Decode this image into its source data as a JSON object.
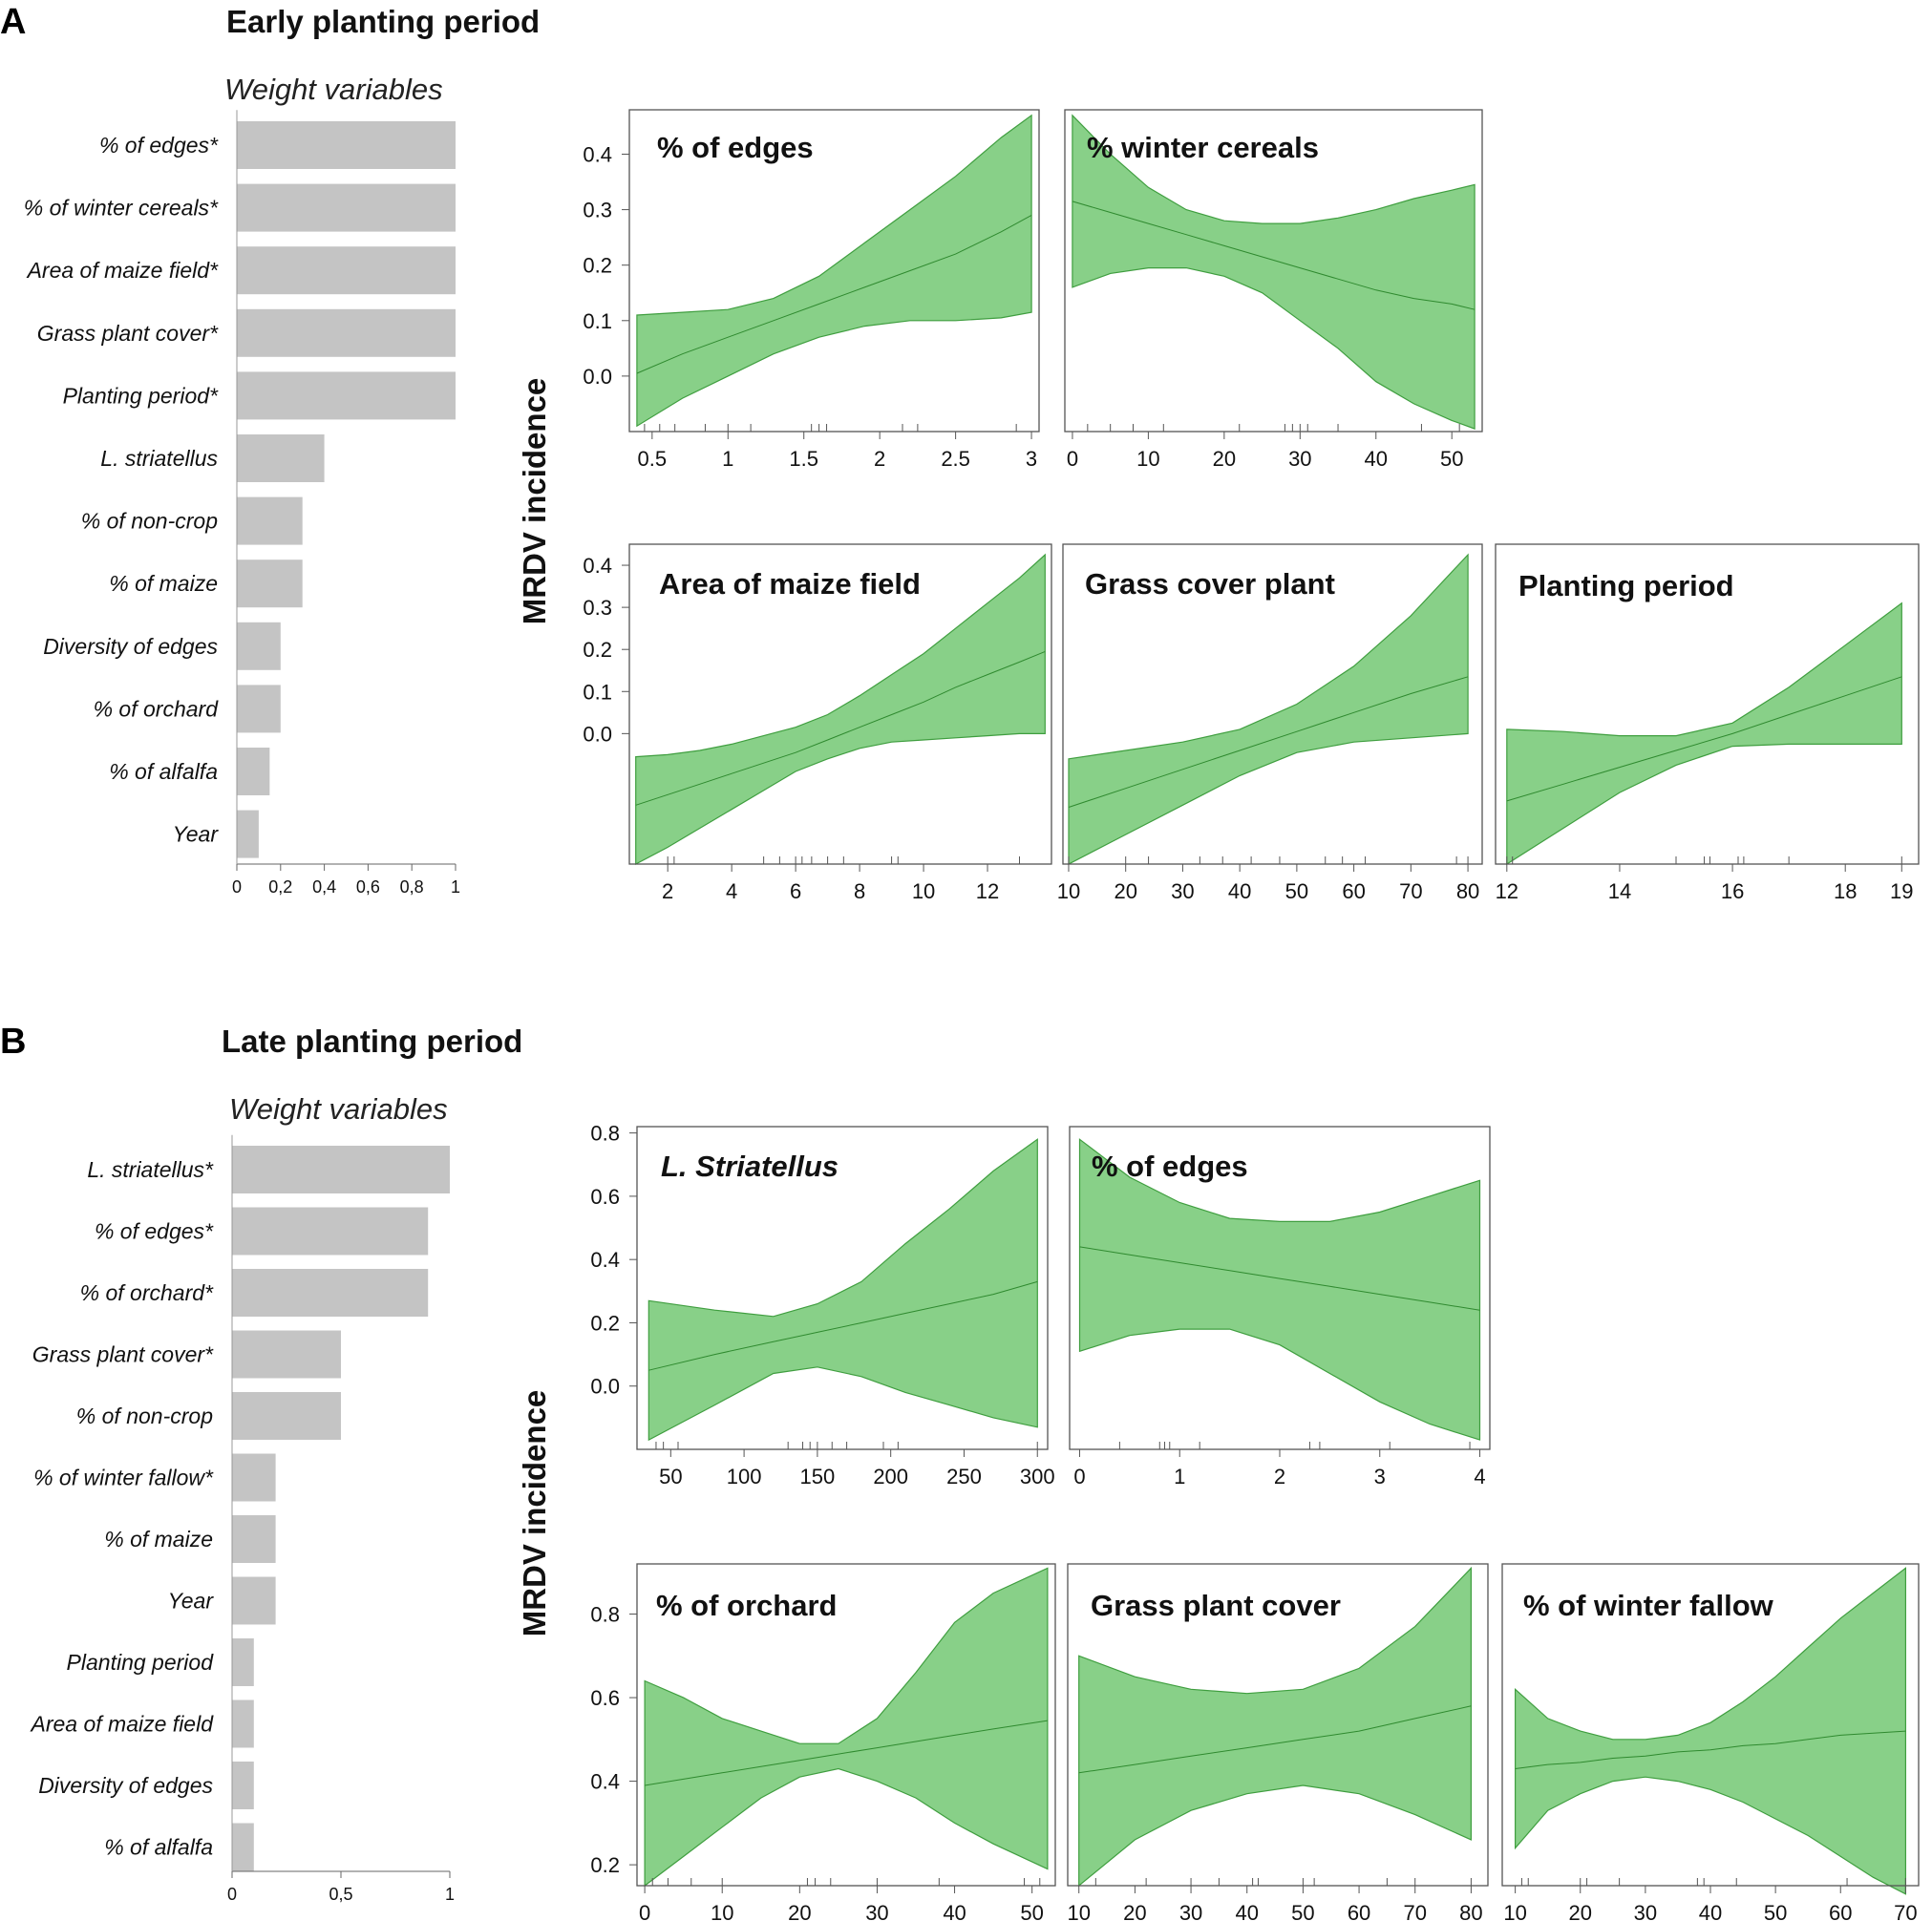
{
  "panels": [
    {
      "letter": "A",
      "title": "Early planting period",
      "weight_title": "Weight variables",
      "ylabel": "MRDV incidence",
      "weights": {
        "labels": [
          "% of edges*",
          "% of winter cereals*",
          "Area of maize field*",
          "Grass plant cover*",
          "Planting period*",
          "L. striatellus",
          "% of non-crop",
          "% of maize",
          "Diversity of edges",
          "% of orchard",
          "% of alfalfa",
          "Year"
        ],
        "values": [
          1.0,
          1.0,
          1.0,
          1.0,
          1.0,
          0.4,
          0.3,
          0.3,
          0.2,
          0.2,
          0.15,
          0.1
        ],
        "ticks": [
          0,
          0.2,
          0.4,
          0.6,
          0.8,
          1
        ],
        "tick_labels": [
          "0",
          "0,2",
          "0,4",
          "0,6",
          "0,8",
          "1"
        ],
        "max": 1
      },
      "row_yticks": [
        {
          "values": [
            0.0,
            0.1,
            0.2,
            0.3,
            0.4
          ],
          "labels": [
            "0.0",
            "0.1",
            "0.2",
            "0.3",
            "0.4"
          ]
        },
        {
          "values": [
            0.0,
            0.1,
            0.2,
            0.3,
            0.4
          ],
          "labels": [
            "0.0",
            "0.1",
            "0.2",
            "0.3",
            "0.4"
          ]
        }
      ]
    },
    {
      "letter": "B",
      "title": "Late planting period",
      "weight_title": "Weight variables",
      "ylabel": "MRDV incidence",
      "weights": {
        "labels": [
          "L. striatellus*",
          "% of edges*",
          "% of orchard*",
          "Grass plant cover*",
          "% of non-crop",
          "% of winter fallow*",
          "% of maize",
          "Year",
          "Planting period",
          "Area of maize field",
          "Diversity of edges",
          "% of alfalfa"
        ],
        "values": [
          1.0,
          0.9,
          0.9,
          0.5,
          0.5,
          0.2,
          0.2,
          0.2,
          0.1,
          0.1,
          0.1,
          0.1
        ],
        "ticks": [
          0,
          0.5,
          1
        ],
        "tick_labels": [
          "0",
          "0,5",
          "1"
        ],
        "max": 1
      },
      "row_yticks": [
        {
          "values": [
            0.0,
            0.2,
            0.4,
            0.6,
            0.8
          ],
          "labels": [
            "0.0",
            "0.2",
            "0.4",
            "0.6",
            "0.8"
          ]
        },
        {
          "values": [
            0.2,
            0.4,
            0.6,
            0.8
          ],
          "labels": [
            "0.2",
            "0.4",
            "0.6",
            "0.8"
          ]
        }
      ]
    }
  ],
  "chart_data": [
    {
      "type": "bar",
      "title": "Early planting period — Weight variables",
      "categories": [
        "% of edges*",
        "% of winter cereals*",
        "Area of maize field*",
        "Grass plant cover*",
        "Planting period*",
        "L. striatellus",
        "% of non-crop",
        "% of maize",
        "Diversity of edges",
        "% of orchard",
        "% of alfalfa",
        "Year"
      ],
      "values": [
        1.0,
        1.0,
        1.0,
        1.0,
        1.0,
        0.4,
        0.3,
        0.3,
        0.2,
        0.2,
        0.15,
        0.1
      ],
      "xlim": [
        0,
        1
      ]
    },
    {
      "type": "area",
      "panel": "A",
      "title": "% of edges",
      "ylabel": "MRDV incidence",
      "xlim": [
        0.35,
        3.05
      ],
      "ylim": [
        -0.1,
        0.48
      ],
      "xticks": [
        0.5,
        1,
        1.5,
        2,
        2.5,
        3
      ],
      "xtick_labels": [
        "0.5",
        "1",
        "1.5",
        "2",
        "2.5",
        "3"
      ],
      "x": [
        0.4,
        0.7,
        1.0,
        1.3,
        1.6,
        1.9,
        2.2,
        2.5,
        2.8,
        3.0
      ],
      "fit": [
        0.005,
        0.04,
        0.07,
        0.1,
        0.13,
        0.16,
        0.19,
        0.22,
        0.26,
        0.29
      ],
      "lower": [
        -0.09,
        -0.04,
        0.0,
        0.04,
        0.07,
        0.09,
        0.1,
        0.1,
        0.105,
        0.115
      ],
      "upper": [
        0.11,
        0.115,
        0.12,
        0.14,
        0.18,
        0.24,
        0.3,
        0.36,
        0.43,
        0.47
      ],
      "rug": [
        0.45,
        0.55,
        0.65,
        0.85,
        1.0,
        1.15,
        1.55,
        1.6,
        1.65,
        2.15,
        2.25,
        2.9
      ]
    },
    {
      "type": "area",
      "panel": "A",
      "title": "% winter cereals",
      "xlim": [
        -1,
        54
      ],
      "ylim": [
        -0.1,
        0.48
      ],
      "xticks": [
        0,
        10,
        20,
        30,
        40,
        50
      ],
      "xtick_labels": [
        "0",
        "10",
        "20",
        "30",
        "40",
        "50"
      ],
      "x": [
        0,
        5,
        10,
        15,
        20,
        25,
        30,
        35,
        40,
        45,
        50,
        53
      ],
      "fit": [
        0.315,
        0.295,
        0.275,
        0.255,
        0.235,
        0.215,
        0.195,
        0.175,
        0.155,
        0.14,
        0.13,
        0.12
      ],
      "lower": [
        0.16,
        0.185,
        0.195,
        0.195,
        0.18,
        0.15,
        0.1,
        0.05,
        -0.01,
        -0.05,
        -0.08,
        -0.095
      ],
      "upper": [
        0.47,
        0.4,
        0.34,
        0.3,
        0.28,
        0.275,
        0.275,
        0.285,
        0.3,
        0.32,
        0.335,
        0.345
      ],
      "rug": [
        2,
        5,
        8,
        12,
        22,
        28,
        29,
        30,
        31,
        35,
        46,
        51
      ]
    },
    {
      "type": "area",
      "panel": "A",
      "title": "Area of maize field",
      "xlim": [
        0.8,
        14.0
      ],
      "ylim": [
        -0.31,
        0.45
      ],
      "xticks": [
        2,
        4,
        6,
        8,
        10,
        12
      ],
      "xtick_labels": [
        "2",
        "4",
        "6",
        "8",
        "10",
        "12"
      ],
      "x": [
        1.0,
        2.0,
        3.0,
        4.0,
        5.0,
        6.0,
        7.0,
        8.0,
        9.0,
        10.0,
        11.0,
        12.0,
        13.0,
        13.8
      ],
      "fit": [
        -0.17,
        -0.145,
        -0.12,
        -0.095,
        -0.07,
        -0.045,
        -0.015,
        0.015,
        0.045,
        0.075,
        0.11,
        0.14,
        0.17,
        0.195
      ],
      "lower": [
        -0.31,
        -0.27,
        -0.225,
        -0.18,
        -0.135,
        -0.09,
        -0.06,
        -0.035,
        -0.02,
        -0.015,
        -0.01,
        -0.005,
        0.0,
        0.0
      ],
      "upper": [
        -0.055,
        -0.05,
        -0.04,
        -0.025,
        -0.005,
        0.015,
        0.045,
        0.09,
        0.14,
        0.19,
        0.25,
        0.31,
        0.37,
        0.425
      ],
      "rug": [
        2.0,
        2.2,
        5.0,
        5.5,
        6.0,
        6.2,
        6.5,
        7.0,
        7.5,
        9.0,
        9.2,
        13.0
      ]
    },
    {
      "type": "area",
      "panel": "A",
      "title": "Grass cover plant",
      "xlim": [
        9,
        82.5
      ],
      "ylim": [
        -0.31,
        0.45
      ],
      "xticks": [
        10,
        20,
        30,
        40,
        50,
        60,
        70,
        80
      ],
      "xtick_labels": [
        "10",
        "20",
        "30",
        "40",
        "50",
        "60",
        "70",
        "80"
      ],
      "x": [
        10,
        20,
        30,
        40,
        50,
        60,
        70,
        80
      ],
      "fit": [
        -0.175,
        -0.13,
        -0.085,
        -0.04,
        0.005,
        0.05,
        0.095,
        0.135
      ],
      "lower": [
        -0.31,
        -0.24,
        -0.17,
        -0.1,
        -0.045,
        -0.02,
        -0.01,
        0.0
      ],
      "upper": [
        -0.06,
        -0.04,
        -0.02,
        0.01,
        0.07,
        0.16,
        0.28,
        0.425
      ],
      "rug": [
        10,
        20,
        24,
        33,
        37,
        42,
        47,
        55,
        58,
        62,
        78,
        80
      ]
    },
    {
      "type": "area",
      "panel": "A",
      "title": "Planting period",
      "xlim": [
        11.8,
        19.3
      ],
      "ylim": [
        -0.31,
        0.45
      ],
      "xticks": [
        12,
        14,
        16,
        18,
        19
      ],
      "xtick_labels": [
        "12",
        "14",
        "16",
        "18",
        "19"
      ],
      "x": [
        12,
        13,
        14,
        15,
        16,
        17,
        18,
        19
      ],
      "fit": [
        -0.16,
        -0.12,
        -0.08,
        -0.04,
        0.0,
        0.045,
        0.09,
        0.135
      ],
      "lower": [
        -0.31,
        -0.225,
        -0.14,
        -0.075,
        -0.03,
        -0.025,
        -0.025,
        -0.025
      ],
      "upper": [
        0.01,
        0.005,
        -0.005,
        -0.005,
        0.025,
        0.11,
        0.21,
        0.31
      ],
      "rug": [
        12,
        12.1,
        15,
        15.5,
        15.6,
        16.1,
        16.2,
        17,
        19
      ]
    },
    {
      "type": "bar",
      "title": "Late planting period — Weight variables",
      "categories": [
        "L. striatellus*",
        "% of edges*",
        "% of orchard*",
        "Grass plant cover*",
        "% of non-crop",
        "% of winter fallow*",
        "% of maize",
        "Year",
        "Planting period",
        "Area of maize field",
        "Diversity of edges",
        "% of alfalfa"
      ],
      "values": [
        1.0,
        0.9,
        0.9,
        0.5,
        0.5,
        0.2,
        0.2,
        0.2,
        0.1,
        0.1,
        0.1,
        0.1
      ],
      "xlim": [
        0,
        1
      ]
    },
    {
      "type": "area",
      "panel": "B",
      "title": "L. Striatellus",
      "title_italic": true,
      "ylabel": "MRDV incidence",
      "xlim": [
        27,
        307
      ],
      "ylim": [
        -0.2,
        0.82
      ],
      "xticks": [
        50,
        100,
        150,
        200,
        250,
        300
      ],
      "xtick_labels": [
        "50",
        "100",
        "150",
        "200",
        "250",
        "300"
      ],
      "x": [
        35,
        80,
        120,
        150,
        180,
        210,
        240,
        270,
        300
      ],
      "fit": [
        0.05,
        0.1,
        0.14,
        0.17,
        0.2,
        0.23,
        0.26,
        0.29,
        0.33
      ],
      "lower": [
        -0.17,
        -0.06,
        0.04,
        0.06,
        0.03,
        -0.02,
        -0.06,
        -0.1,
        -0.13
      ],
      "upper": [
        0.27,
        0.24,
        0.22,
        0.26,
        0.33,
        0.45,
        0.56,
        0.68,
        0.78
      ],
      "rug": [
        40,
        45,
        55,
        130,
        140,
        145,
        150,
        160,
        170,
        195,
        205,
        300
      ]
    },
    {
      "type": "area",
      "panel": "B",
      "title": "% of edges",
      "xlim": [
        -0.1,
        4.1
      ],
      "ylim": [
        -0.2,
        0.82
      ],
      "xticks": [
        0,
        1,
        2,
        3,
        4
      ],
      "xtick_labels": [
        "0",
        "1",
        "2",
        "3",
        "4"
      ],
      "x": [
        0,
        0.5,
        1.0,
        1.5,
        2.0,
        2.5,
        3.0,
        3.5,
        4.0
      ],
      "fit": [
        0.44,
        0.415,
        0.39,
        0.365,
        0.34,
        0.315,
        0.29,
        0.265,
        0.24
      ],
      "lower": [
        0.11,
        0.16,
        0.18,
        0.18,
        0.13,
        0.04,
        -0.05,
        -0.12,
        -0.17
      ],
      "upper": [
        0.78,
        0.66,
        0.58,
        0.53,
        0.52,
        0.52,
        0.55,
        0.6,
        0.65
      ],
      "rug": [
        0.4,
        0.8,
        0.85,
        0.9,
        1.2,
        2.3,
        2.4,
        3.1,
        3.9
      ]
    },
    {
      "type": "area",
      "panel": "B",
      "title": "% of orchard",
      "xlim": [
        -1,
        53
      ],
      "ylim": [
        0.15,
        0.92
      ],
      "xticks": [
        0,
        10,
        20,
        30,
        40,
        50
      ],
      "xtick_labels": [
        "0",
        "10",
        "20",
        "30",
        "40",
        "50"
      ],
      "x": [
        0,
        5,
        10,
        15,
        20,
        25,
        30,
        35,
        40,
        45,
        52
      ],
      "fit": [
        0.39,
        0.405,
        0.42,
        0.435,
        0.45,
        0.465,
        0.48,
        0.495,
        0.51,
        0.525,
        0.545
      ],
      "lower": [
        0.15,
        0.22,
        0.29,
        0.36,
        0.41,
        0.43,
        0.4,
        0.36,
        0.3,
        0.25,
        0.19
      ],
      "upper": [
        0.64,
        0.6,
        0.55,
        0.52,
        0.49,
        0.49,
        0.55,
        0.66,
        0.78,
        0.85,
        0.91
      ],
      "rug": [
        1,
        3,
        6,
        10,
        21,
        22,
        24,
        30,
        38,
        49,
        51
      ]
    },
    {
      "type": "area",
      "panel": "B",
      "title": "Grass plant cover",
      "xlim": [
        8,
        83
      ],
      "ylim": [
        0.15,
        0.92
      ],
      "xticks": [
        10,
        20,
        30,
        40,
        50,
        60,
        70,
        80
      ],
      "xtick_labels": [
        "10",
        "20",
        "30",
        "40",
        "50",
        "60",
        "70",
        "80"
      ],
      "x": [
        10,
        20,
        30,
        40,
        50,
        60,
        70,
        80
      ],
      "fit": [
        0.42,
        0.44,
        0.46,
        0.48,
        0.5,
        0.52,
        0.55,
        0.58
      ],
      "lower": [
        0.15,
        0.26,
        0.33,
        0.37,
        0.39,
        0.37,
        0.32,
        0.26
      ],
      "upper": [
        0.7,
        0.65,
        0.62,
        0.61,
        0.62,
        0.67,
        0.77,
        0.91
      ],
      "rug": [
        13,
        22,
        30,
        35,
        41,
        42,
        50,
        52,
        65,
        70,
        80
      ]
    },
    {
      "type": "area",
      "panel": "B",
      "title": "% of winter fallow",
      "xlim": [
        8,
        72
      ],
      "ylim": [
        0.15,
        0.92
      ],
      "xticks": [
        10,
        20,
        30,
        40,
        50,
        60,
        70
      ],
      "xtick_labels": [
        "10",
        "20",
        "30",
        "40",
        "50",
        "60",
        "70"
      ],
      "x": [
        10,
        15,
        20,
        25,
        30,
        35,
        40,
        45,
        50,
        55,
        60,
        65,
        70
      ],
      "fit": [
        0.43,
        0.44,
        0.445,
        0.455,
        0.46,
        0.47,
        0.475,
        0.485,
        0.49,
        0.5,
        0.51,
        0.515,
        0.52
      ],
      "lower": [
        0.24,
        0.33,
        0.37,
        0.4,
        0.41,
        0.4,
        0.38,
        0.35,
        0.31,
        0.27,
        0.22,
        0.17,
        0.13
      ],
      "upper": [
        0.62,
        0.55,
        0.52,
        0.5,
        0.5,
        0.51,
        0.54,
        0.59,
        0.65,
        0.72,
        0.79,
        0.85,
        0.91
      ],
      "rug": [
        11,
        12,
        20,
        21,
        26,
        38,
        39,
        44,
        61,
        70
      ]
    }
  ]
}
